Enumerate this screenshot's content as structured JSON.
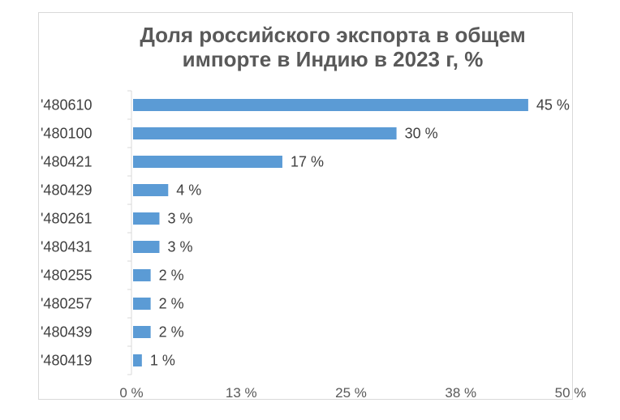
{
  "chart_data": {
    "type": "bar",
    "orientation": "horizontal",
    "title": "Доля российского экспорта в общем импорте в Индию в 2023 г, %",
    "categories": [
      "'480610",
      "'480100",
      "'480421",
      "'480429",
      "'480261",
      "'480431",
      "'480255",
      "'480257",
      "'480439",
      "'480419"
    ],
    "values": [
      45,
      30,
      17,
      4,
      3,
      3,
      2,
      2,
      2,
      1
    ],
    "value_labels": [
      "45 %",
      "30 %",
      "17 %",
      "4 %",
      "3 %",
      "3 %",
      "2 %",
      "2 %",
      "2 %",
      "1 %"
    ],
    "xlim": [
      0,
      50
    ],
    "x_ticks": [
      0,
      12.5,
      25,
      37.5,
      50
    ],
    "x_tick_labels": [
      "0 %",
      "13 %",
      "25 %",
      "38 %",
      "50 %"
    ],
    "grid": false,
    "bar_color": "#5b9bd5"
  }
}
